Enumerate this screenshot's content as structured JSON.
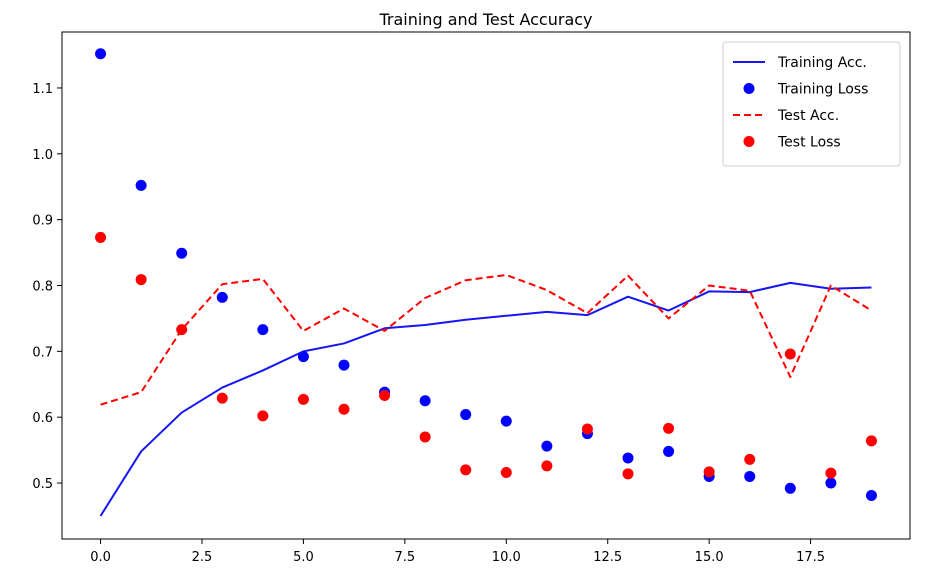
{
  "chart_data": {
    "type": "line",
    "title": "Training and Test Accuracy",
    "xlabel": "",
    "ylabel": "",
    "xlim": [
      -0.95,
      19.95
    ],
    "ylim": [
      0.415,
      1.185
    ],
    "x_ticks": [
      0.0,
      2.5,
      5.0,
      7.5,
      10.0,
      12.5,
      15.0,
      17.5
    ],
    "x_tick_labels": [
      "0.0",
      "2.5",
      "5.0",
      "7.5",
      "10.0",
      "12.5",
      "15.0",
      "17.5"
    ],
    "y_ticks": [
      0.5,
      0.6,
      0.7,
      0.8,
      0.9,
      1.0,
      1.1
    ],
    "y_tick_labels": [
      "0.5",
      "0.6",
      "0.7",
      "0.8",
      "0.9",
      "1.0",
      "1.1"
    ],
    "x": [
      0,
      1,
      2,
      3,
      4,
      5,
      6,
      7,
      8,
      9,
      10,
      11,
      12,
      13,
      14,
      15,
      16,
      17,
      18,
      19
    ],
    "grid": false,
    "legend_position": "top-right",
    "series": [
      {
        "name": "Training Acc.",
        "kind": "line",
        "style": "solid",
        "color": "#1515f5",
        "values": [
          0.45,
          0.548,
          0.607,
          0.645,
          0.671,
          0.7,
          0.712,
          0.735,
          0.74,
          0.748,
          0.754,
          0.76,
          0.755,
          0.783,
          0.762,
          0.791,
          0.79,
          0.804,
          0.795,
          0.797
        ]
      },
      {
        "name": "Training Loss",
        "kind": "scatter",
        "color": "#0000ff",
        "values": [
          1.152,
          0.952,
          0.849,
          0.782,
          0.733,
          0.692,
          0.679,
          0.638,
          0.625,
          0.604,
          0.594,
          0.556,
          0.575,
          0.538,
          0.548,
          0.51,
          0.51,
          0.492,
          0.5,
          0.481
        ]
      },
      {
        "name": "Test Acc.",
        "kind": "line",
        "style": "dashed",
        "color": "#ff0000",
        "values": [
          0.619,
          0.638,
          0.733,
          0.802,
          0.81,
          0.731,
          0.765,
          0.731,
          0.781,
          0.808,
          0.816,
          0.793,
          0.758,
          0.815,
          0.75,
          0.8,
          0.792,
          0.661,
          0.8,
          0.762
        ]
      },
      {
        "name": "Test Loss",
        "kind": "scatter",
        "color": "#ff0000",
        "values": [
          0.873,
          0.809,
          0.733,
          0.629,
          0.602,
          0.627,
          0.612,
          0.633,
          0.57,
          0.52,
          0.516,
          0.526,
          0.582,
          0.514,
          0.583,
          0.517,
          0.536,
          0.696,
          0.515,
          0.564
        ]
      }
    ]
  }
}
